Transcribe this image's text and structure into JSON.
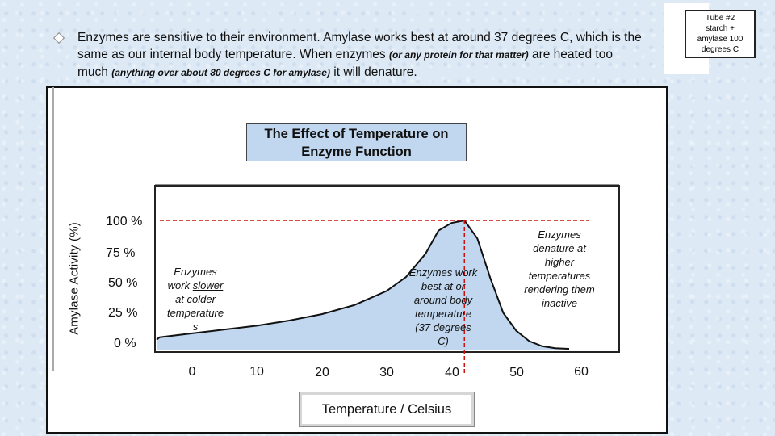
{
  "intro": {
    "p1": "Enzymes are sensitive to their environment. Amylase works best at around 37 degrees C, which is the same as our internal body temperature. When enzymes ",
    "p2": "(or any protein for that matter)",
    "p3": " are heated too much ",
    "p4": "(anything over about 80 degrees C for amylase)",
    "p5": " it will denature."
  },
  "tube_note": {
    "line1": "Tube #2",
    "line2": "starch +",
    "line3": "amylase 100",
    "line4": "degrees C"
  },
  "chart_data": {
    "type": "area",
    "title": "The Effect of Temperature on Enzyme Function",
    "xlabel": "Temperature / Celsius",
    "ylabel": "Amylase Activity  (%)",
    "x_ticks": [
      "0",
      "10",
      "20",
      "30",
      "40",
      "50",
      "60"
    ],
    "y_ticks": [
      "100 %",
      "75 %",
      "50 %",
      "25 %",
      "0 %"
    ],
    "ylim": [
      0,
      100
    ],
    "x": [
      -5,
      0,
      5,
      10,
      15,
      20,
      25,
      30,
      33,
      36,
      38,
      40,
      42,
      44,
      46,
      48,
      50,
      52,
      54,
      56,
      58
    ],
    "y": [
      9,
      12,
      15,
      18,
      22,
      27,
      34,
      45,
      56,
      74,
      92,
      98,
      100,
      86,
      55,
      28,
      14,
      6,
      2,
      0.5,
      0
    ],
    "optimum_x": 42,
    "fill_color": "#c0d7ef",
    "guide_color": "#cc1111",
    "annotations": {
      "cold": [
        "Enzymes",
        "work slower",
        "at colder",
        "temperature",
        "s"
      ],
      "best": [
        "Enzymes work",
        "best at or",
        "around body",
        "temperature",
        "(37 degrees",
        "C)"
      ],
      "hot": [
        "Enzymes",
        "denature at",
        "higher",
        "temperatures",
        "rendering them",
        "inactive"
      ]
    }
  }
}
